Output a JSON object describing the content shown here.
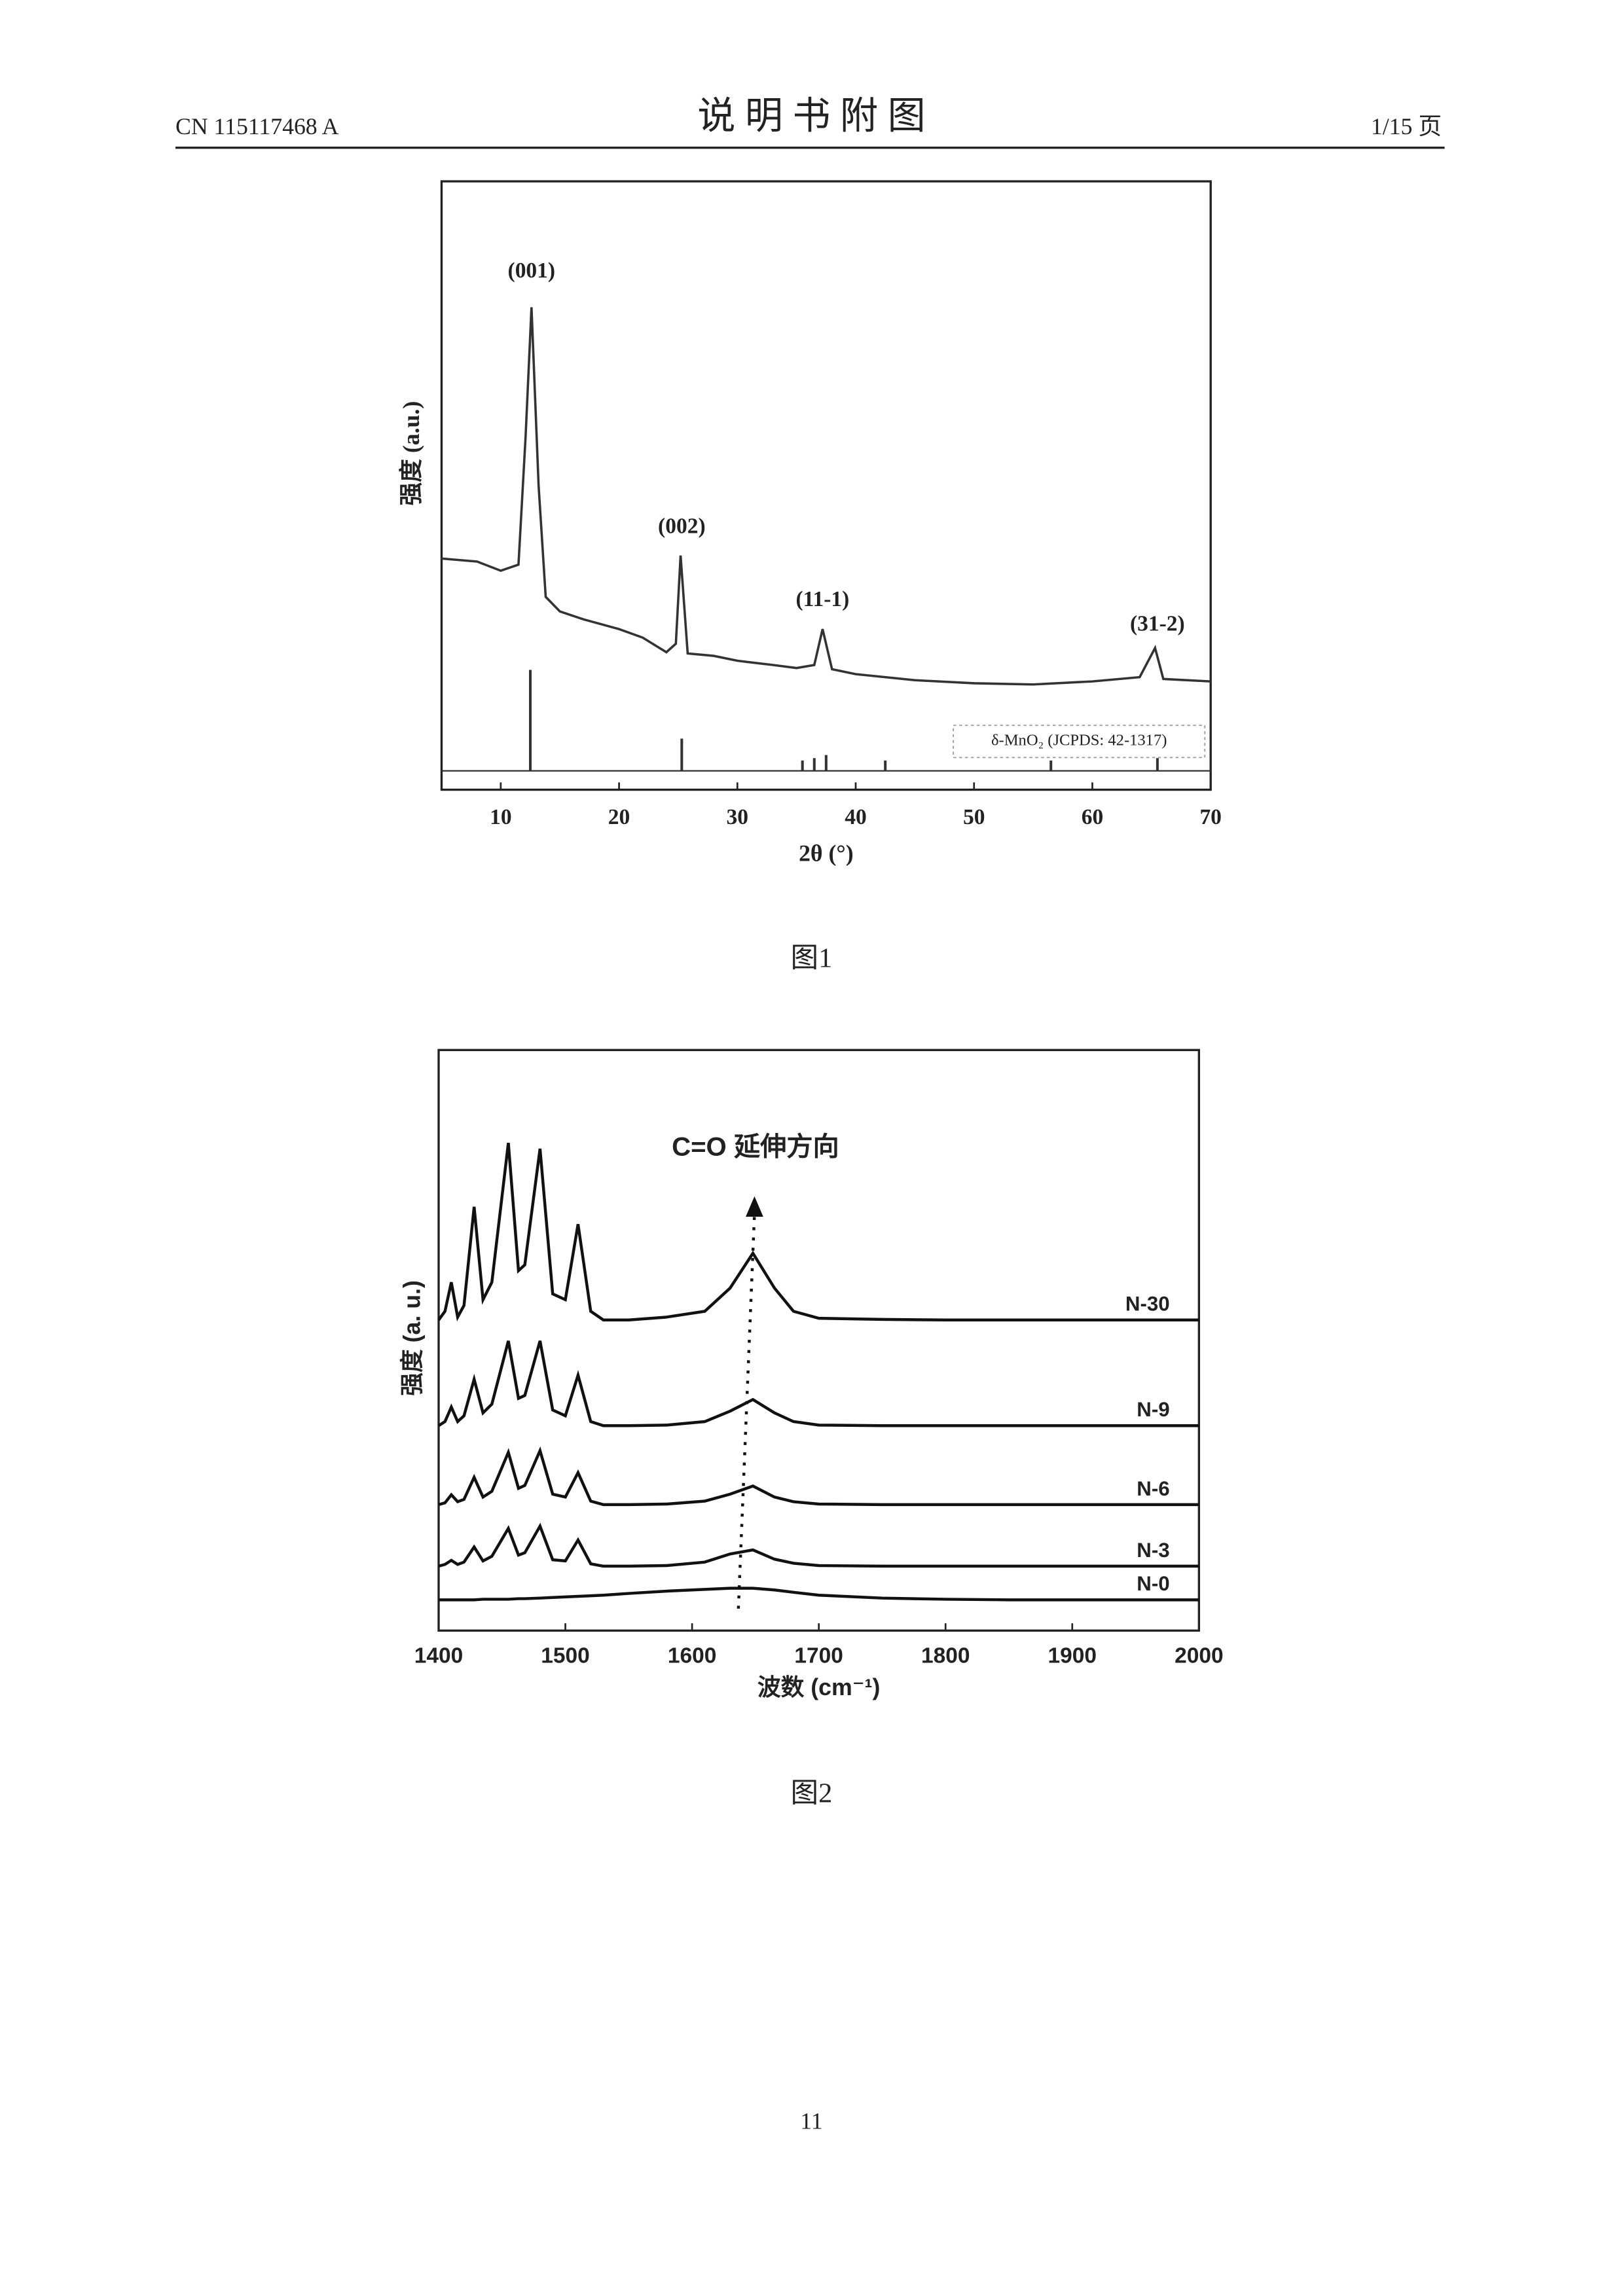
{
  "header": {
    "doc_number": "CN 115117468 A",
    "title": "说 明 书 附 图",
    "page_info": "1/15 页"
  },
  "chart_data": [
    {
      "type": "line",
      "xlabel": "2θ (°)",
      "ylabel": "强度 (a.u.)",
      "xlim": [
        5,
        70
      ],
      "xticks": [
        10,
        20,
        30,
        40,
        50,
        60,
        70
      ],
      "ylim": [
        0,
        100
      ],
      "series": [
        {
          "name": null,
          "color": "#333333",
          "x": [
            5,
            8,
            10,
            11.5,
            12.1,
            12.6,
            13.2,
            13.8,
            15,
            17,
            20,
            22,
            24,
            24.8,
            25.2,
            25.8,
            28,
            30,
            33,
            35,
            36.5,
            37.2,
            38,
            40,
            45,
            50,
            55,
            60,
            64,
            65.3,
            66,
            70
          ],
          "values": [
            38,
            37.5,
            36,
            37,
            58,
            79.3,
            50,
            31.7,
            29.3,
            28,
            26.4,
            25,
            22.6,
            24,
            38.5,
            22.4,
            22,
            21.2,
            20.5,
            20,
            20.5,
            26.4,
            19.8,
            19,
            18,
            17.5,
            17.3,
            17.8,
            18.5,
            23.3,
            18.2,
            17.8
          ]
        }
      ],
      "reference": {
        "legend": "δ-MnO₂ (JCPDS: 42-1317)",
        "baseline": 3.1,
        "color": "#333333",
        "x": [
          12.5,
          25.3,
          35.5,
          36.5,
          37.5,
          42.5,
          56.5,
          65.5
        ],
        "values": [
          19.7,
          8.4,
          4.8,
          5.2,
          5.7,
          4.8,
          4.8,
          5.2
        ]
      },
      "legend": "lower right",
      "annotations": [
        {
          "text": "(001)",
          "x": 12.6,
          "y": 85
        },
        {
          "text": "(002)",
          "x": 25.3,
          "y": 43
        },
        {
          "text": "(11-1)",
          "x": 37.2,
          "y": 31
        },
        {
          "text": "(31-2)",
          "x": 65.5,
          "y": 27
        }
      ]
    },
    {
      "type": "line",
      "xlabel": "波数 (cm⁻¹)",
      "ylabel": "强度 (a. u.)",
      "xlim": [
        1400,
        2000
      ],
      "xticks": [
        1400,
        1500,
        1600,
        1700,
        1800,
        1900,
        2000
      ],
      "ylim": [
        0,
        100
      ],
      "x": [
        1400,
        1405,
        1410,
        1415,
        1420,
        1428,
        1435,
        1442,
        1455,
        1463,
        1468,
        1480,
        1490,
        1500,
        1510,
        1520,
        1530,
        1550,
        1580,
        1610,
        1630,
        1648,
        1665,
        1680,
        1700,
        1750,
        1800,
        1850,
        1900,
        1950,
        2000
      ],
      "series": [
        {
          "name": "N-30",
          "color": "#111111",
          "values": [
            53.5,
            55,
            60,
            54,
            56,
            73,
            57,
            60,
            84,
            62,
            63,
            83,
            58,
            57,
            70,
            55,
            53.5,
            53.5,
            54,
            55,
            59,
            65,
            59,
            55,
            53.8,
            53.6,
            53.5,
            53.5,
            53.5,
            53.5,
            53.5
          ]
        },
        {
          "name": "N-9",
          "color": "#111111",
          "values": [
            35.3,
            36,
            38.5,
            36,
            37,
            43.3,
            37.5,
            39,
            49.9,
            40,
            40.5,
            49.9,
            38,
            37,
            44,
            36,
            35.3,
            35.3,
            35.4,
            36,
            37.8,
            39.8,
            37.5,
            36,
            35.4,
            35.3,
            35.3,
            35.3,
            35.3,
            35.3,
            35.3
          ]
        },
        {
          "name": "N-6",
          "color": "#111111",
          "values": [
            21.7,
            22,
            23.4,
            22.2,
            22.6,
            26.4,
            23,
            24,
            30.7,
            24.5,
            25,
            31,
            23.5,
            23,
            27.2,
            22.3,
            21.7,
            21.7,
            21.8,
            22.3,
            23.5,
            24.9,
            23,
            22.2,
            21.8,
            21.7,
            21.7,
            21.7,
            21.7,
            21.7,
            21.7
          ]
        },
        {
          "name": "N-3",
          "color": "#111111",
          "values": [
            11.1,
            11.4,
            12.1,
            11.4,
            11.8,
            14.4,
            12,
            12.8,
            17.6,
            13,
            13.4,
            18,
            12.2,
            12,
            15.6,
            11.5,
            11.1,
            11.1,
            11.2,
            11.8,
            13.2,
            13.9,
            12.3,
            11.6,
            11.2,
            11.1,
            11.1,
            11.1,
            11.1,
            11.1,
            11.1
          ]
        },
        {
          "name": "N-0",
          "color": "#111111",
          "values": [
            5.3,
            5.3,
            5.3,
            5.3,
            5.3,
            5.3,
            5.4,
            5.4,
            5.4,
            5.5,
            5.5,
            5.6,
            5.7,
            5.8,
            5.9,
            6,
            6.1,
            6.4,
            6.8,
            7.1,
            7.3,
            7.3,
            7,
            6.6,
            6.1,
            5.6,
            5.4,
            5.3,
            5.3,
            5.3,
            5.3
          ]
        }
      ],
      "annotations": [
        {
          "text": "C=O 延伸方向",
          "x": 1650,
          "y": 83
        }
      ]
    }
  ],
  "captions": [
    "图1",
    "图2"
  ],
  "page_number": "11"
}
